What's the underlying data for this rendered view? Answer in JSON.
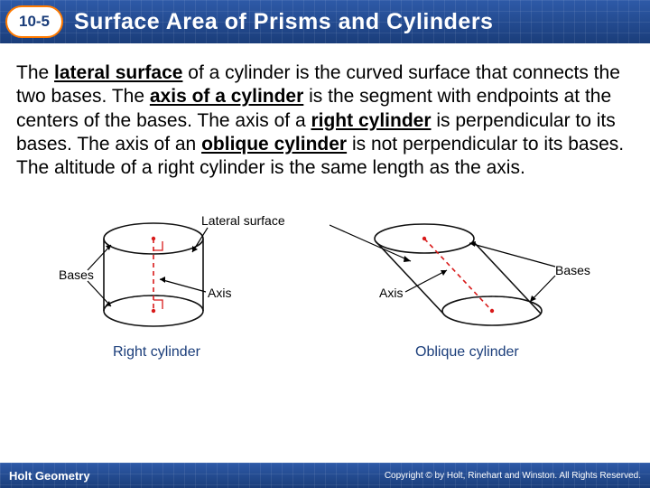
{
  "header": {
    "section": "10-5",
    "title": "Surface Area of Prisms and Cylinders",
    "section_badge_border": "#ff7a00",
    "section_badge_bg": "#ffffff",
    "section_text_color": "#1a3d7a",
    "header_text_color": "#ffffff"
  },
  "body": {
    "paragraph_html": "The <b>lateral surface</b> of a cylinder is the curved surface that connects the two bases. The <b>axis of a cylinder</b> is the segment with endpoints at the centers of the bases. The axis of a <b>right cylinder</b> is perpendicular to its bases. The axis of an <b>oblique cylinder</b> is not perpendicular to its bases. The altitude of a right cylinder is the same length as the axis.",
    "font_size": 21,
    "text_color": "#000000"
  },
  "diagrams": {
    "right": {
      "caption": "Right cylinder",
      "labels": {
        "bases": "Bases",
        "axis": "Axis",
        "lateral": "Lateral surfaces"
      },
      "outline_color": "#111111",
      "axis_color": "#d81a1a",
      "marker_color": "#d81a1a",
      "caption_color": "#1a3d7a"
    },
    "oblique": {
      "caption": "Oblique cylinder",
      "labels": {
        "bases": "Bases",
        "axis": "Axis"
      },
      "outline_color": "#111111",
      "axis_color": "#d81a1a",
      "caption_color": "#1a3d7a"
    }
  },
  "footer": {
    "left": "Holt Geometry",
    "right": "Copyright © by Holt, Rinehart and Winston. All Rights Reserved.",
    "text_color": "#ffffff"
  },
  "colors": {
    "header_grad_top": "#2e5aa8",
    "header_grad_bottom": "#1a3d7a",
    "background": "#ffffff"
  }
}
